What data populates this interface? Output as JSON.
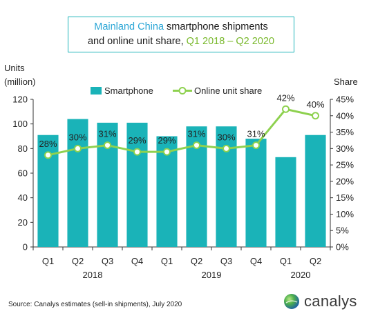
{
  "title": {
    "part1": "Mainland China",
    "part2": " smartphone shipments",
    "part3": "and online unit share, ",
    "part4": "Q1 2018 – Q2 2020"
  },
  "left_axis_title": [
    "Units",
    "(million)"
  ],
  "right_axis_title": "Share",
  "source": "Source: Canalys estimates (sell-in shipments), July 2020",
  "logo_text": "canalys",
  "colors": {
    "bar": "#1ab3b8",
    "line": "#8ed14f",
    "title_accent": "#2aa6d6",
    "title_green": "#78b82a"
  },
  "chart_data": {
    "type": "bar+line",
    "categories": [
      "Q1",
      "Q2",
      "Q3",
      "Q4",
      "Q1",
      "Q2",
      "Q3",
      "Q4",
      "Q1",
      "Q2"
    ],
    "year_labels": [
      {
        "label": "2018",
        "span": [
          0,
          3
        ]
      },
      {
        "label": "2019",
        "span": [
          4,
          7
        ]
      },
      {
        "label": "2020",
        "span": [
          8,
          9
        ]
      }
    ],
    "series": [
      {
        "name": "Smartphone",
        "type": "bar",
        "axis": "left",
        "values": [
          91,
          104,
          101,
          101,
          90,
          98,
          98,
          88,
          73,
          91
        ]
      },
      {
        "name": "Online unit share",
        "type": "line",
        "axis": "right",
        "values": [
          28,
          30,
          31,
          29,
          29,
          31,
          30,
          31,
          42,
          40
        ],
        "labels": [
          "28%",
          "30%",
          "31%",
          "29%",
          "29%",
          "31%",
          "30%",
          "31%",
          "42%",
          "40%"
        ]
      }
    ],
    "left_axis": {
      "ylim": [
        0,
        120
      ],
      "ticks": [
        0,
        20,
        40,
        60,
        80,
        100,
        120
      ]
    },
    "right_axis": {
      "ylim": [
        0,
        45
      ],
      "ticks": [
        "0%",
        "5%",
        "10%",
        "15%",
        "20%",
        "25%",
        "30%",
        "35%",
        "40%",
        "45%"
      ]
    },
    "legend": "top-center"
  }
}
